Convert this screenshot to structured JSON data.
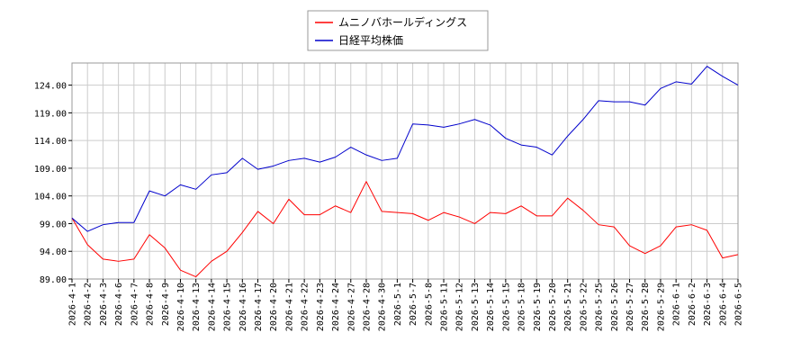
{
  "chart_data": {
    "type": "line",
    "x": [
      "2026-4-1",
      "2026-4-2",
      "2026-4-3",
      "2026-4-6",
      "2026-4-7",
      "2026-4-8",
      "2026-4-9",
      "2026-4-10",
      "2026-4-13",
      "2026-4-14",
      "2026-4-15",
      "2026-4-16",
      "2026-4-17",
      "2026-4-20",
      "2026-4-21",
      "2026-4-22",
      "2026-4-23",
      "2026-4-24",
      "2026-4-27",
      "2026-4-28",
      "2026-4-30",
      "2026-5-1",
      "2026-5-7",
      "2026-5-8",
      "2026-5-11",
      "2026-5-12",
      "2026-5-13",
      "2026-5-14",
      "2026-5-15",
      "2026-5-18",
      "2026-5-19",
      "2026-5-20",
      "2026-5-21",
      "2026-5-22",
      "2026-5-25",
      "2026-5-26",
      "2026-5-27",
      "2026-5-28",
      "2026-5-29",
      "2026-6-1",
      "2026-6-2",
      "2026-6-3",
      "2026-6-4",
      "2026-6-5"
    ],
    "series": [
      {
        "name": "ムニノバホールディングス",
        "color": "#ff0000",
        "values": [
          100.0,
          95.2,
          92.6,
          92.2,
          92.6,
          97.0,
          94.6,
          90.6,
          89.4,
          92.2,
          94.0,
          97.4,
          101.2,
          99.0,
          103.4,
          100.6,
          100.6,
          102.2,
          101.0,
          106.6,
          101.2,
          101.0,
          100.8,
          99.6,
          101.0,
          100.2,
          99.0,
          101.0,
          100.8,
          102.2,
          100.4,
          100.4,
          103.6,
          101.4,
          98.8,
          98.4,
          95.0,
          93.6,
          95.0,
          98.4,
          98.8,
          97.8,
          92.8,
          93.4
        ]
      },
      {
        "name": "日経平均株価",
        "color": "#0000cc",
        "values": [
          100.0,
          97.6,
          98.8,
          99.2,
          99.2,
          104.9,
          104.0,
          106.0,
          105.2,
          107.8,
          108.2,
          110.8,
          108.8,
          109.4,
          110.4,
          110.8,
          110.1,
          111.0,
          112.8,
          111.4,
          110.4,
          110.8,
          117.0,
          116.8,
          116.4,
          117.0,
          117.8,
          116.8,
          114.4,
          113.2,
          112.8,
          111.4,
          114.8,
          117.8,
          121.2,
          121.0,
          121.0,
          120.4,
          123.4,
          124.6,
          124.2,
          127.4,
          125.6,
          124.0
        ]
      }
    ],
    "y_ticks": [
      "89.00",
      "94.00",
      "99.00",
      "104.00",
      "109.00",
      "114.00",
      "119.00",
      "124.00"
    ],
    "ylim": [
      89.0,
      128.0
    ],
    "grid": true,
    "legend_position": "top-center",
    "title": "",
    "xlabel": "",
    "ylabel": ""
  }
}
